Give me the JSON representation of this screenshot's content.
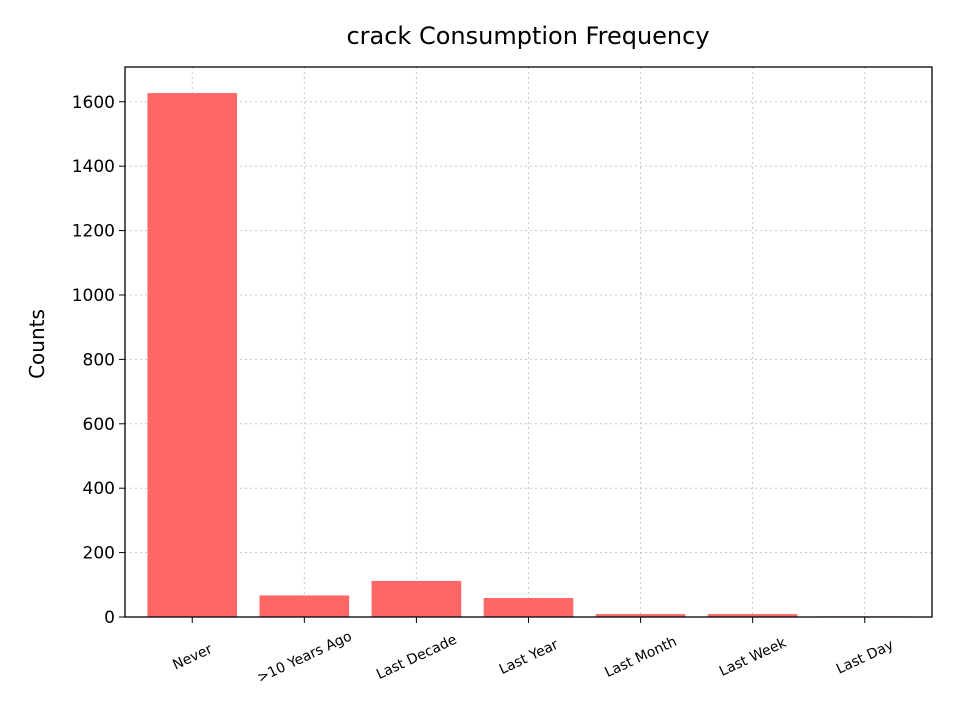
{
  "chart_data": {
    "type": "bar",
    "title": "crack Consumption Frequency",
    "xlabel": "",
    "ylabel": "Counts",
    "categories": [
      "Never",
      ">10 Years Ago",
      "Last Decade",
      "Last Year",
      "Last Month",
      "Last Week",
      "Last Day"
    ],
    "values": [
      1627,
      67,
      112,
      59,
      9,
      9,
      2
    ],
    "ylim": [
      0,
      1708
    ],
    "yticks": [
      0,
      200,
      400,
      600,
      800,
      1000,
      1200,
      1400,
      1600
    ],
    "bar_color": "#ff6666",
    "grid": true,
    "legend": "none"
  }
}
